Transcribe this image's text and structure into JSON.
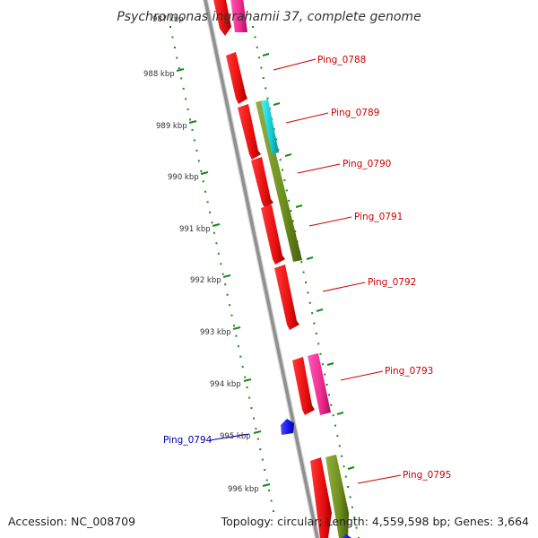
{
  "title": "Psychromonas ingrahamii 37, complete genome",
  "accession": "Accession: NC_008709",
  "summary": "Topology: circular; Length: 4,559,598 bp; Genes: 3,664",
  "top_partial_label": "987 kbp",
  "colors": {
    "backbone": "#8f8f8f",
    "tick": "#1a8a1a",
    "cds": "#ee1111",
    "pink": "#f0339b",
    "olive": "#6f8f1f",
    "cyan": "#11c8d0",
    "blue": "#1515ee",
    "label_red": "#cc0000",
    "label_blue": "#0000aa"
  },
  "kbp_ticks": [
    "988 kbp",
    "989 kbp",
    "990 kbp",
    "991 kbp",
    "992 kbp",
    "993 kbp",
    "994 kbp",
    "995 kbp",
    "996 kbp"
  ],
  "gene_labels": [
    {
      "text": "Ping_0788",
      "color": "#cc0000"
    },
    {
      "text": "Ping_0789",
      "color": "#cc0000"
    },
    {
      "text": "Ping_0790",
      "color": "#cc0000"
    },
    {
      "text": "Ping_0791",
      "color": "#cc0000"
    },
    {
      "text": "Ping_0792",
      "color": "#cc0000"
    },
    {
      "text": "Ping_0793",
      "color": "#cc0000"
    },
    {
      "text": "Ping_0794",
      "color": "#0000aa"
    },
    {
      "text": "Ping_0795",
      "color": "#cc0000"
    }
  ]
}
